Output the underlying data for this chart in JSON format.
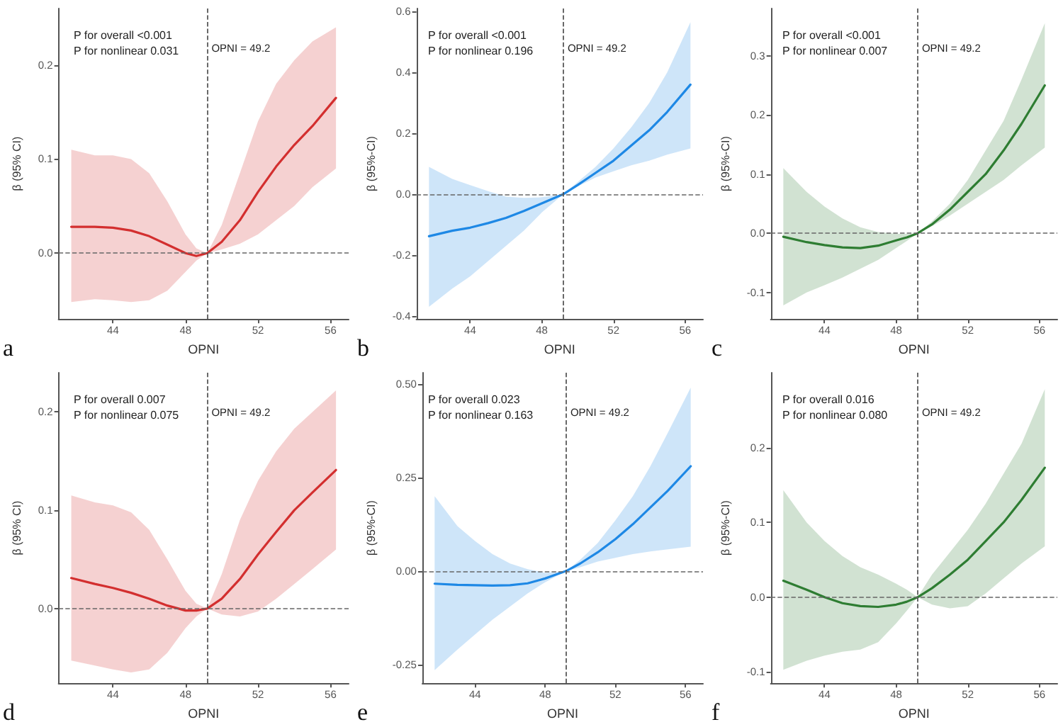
{
  "chart_data": [
    {
      "type": "line",
      "title": "a",
      "xlabel": "OPNI",
      "ylabel": "β (95% CI)",
      "x": [
        41.7,
        43,
        44,
        45,
        46,
        47,
        48,
        48.6,
        49.2,
        50,
        51,
        52,
        53,
        54,
        55,
        56.3
      ],
      "xlim": [
        41,
        57
      ],
      "xticks": [
        44,
        48,
        52,
        56
      ],
      "ylim": [
        -0.07,
        0.26
      ],
      "yticks": [
        {
          "value": 0,
          "label": "0.0"
        },
        {
          "value": 0.1,
          "label": "0.1"
        },
        {
          "value": 0.2,
          "label": "0.2"
        }
      ],
      "grid": false,
      "marker": "none",
      "line_style": "solid",
      "annotations": [
        "P for overall <0.001",
        "P for nonlinear 0.031"
      ],
      "ref_lines": [
        {
          "axis": "x",
          "value": 49.2,
          "label": "OPNI = 49.2",
          "line_style": "dashed"
        },
        {
          "axis": "y",
          "value": 0,
          "line_style": "dashed"
        }
      ],
      "series": [
        {
          "color": "#d32f2f",
          "values": [
            0.028,
            0.028,
            0.027,
            0.024,
            0.018,
            0.009,
            0.0,
            -0.003,
            0,
            0.012,
            0.035,
            0.065,
            0.092,
            0.115,
            0.135,
            0.165
          ],
          "lower": [
            -0.052,
            -0.049,
            -0.05,
            -0.052,
            -0.05,
            -0.04,
            -0.02,
            -0.008,
            0,
            0.004,
            0.01,
            0.02,
            0.035,
            0.05,
            0.07,
            0.09
          ],
          "upper": [
            0.11,
            0.104,
            0.104,
            0.1,
            0.085,
            0.055,
            0.02,
            0.005,
            0,
            0.03,
            0.085,
            0.14,
            0.18,
            0.205,
            0.225,
            0.24
          ]
        }
      ]
    },
    {
      "type": "line",
      "title": "b",
      "xlabel": "OPNI",
      "ylabel": "β (95%-CI)",
      "x": [
        41.7,
        43,
        44,
        45,
        46,
        47,
        48,
        48.6,
        49.2,
        50,
        51,
        52,
        53,
        54,
        55,
        56.3
      ],
      "xlim": [
        41,
        57
      ],
      "xticks": [
        44,
        48,
        52,
        56
      ],
      "ylim": [
        -0.41,
        0.61
      ],
      "yticks": [
        {
          "value": -0.4,
          "label": "-0.4"
        },
        {
          "value": -0.2,
          "label": "-0.2"
        },
        {
          "value": 0,
          "label": "0.0"
        },
        {
          "value": 0.2,
          "label": "0.2"
        },
        {
          "value": 0.4,
          "label": "0.4"
        },
        {
          "value": 0.6,
          "label": "0.6"
        }
      ],
      "grid": false,
      "marker": "none",
      "line_style": "solid",
      "annotations": [
        "P for overall <0.001",
        "P for nonlinear 0.196"
      ],
      "ref_lines": [
        {
          "axis": "x",
          "value": 49.2,
          "label": "OPNI = 49.2",
          "line_style": "dashed"
        },
        {
          "axis": "y",
          "value": 0,
          "line_style": "dashed"
        }
      ],
      "series": [
        {
          "color": "#1e88e5",
          "values": [
            -0.138,
            -0.12,
            -0.11,
            -0.095,
            -0.078,
            -0.055,
            -0.03,
            -0.015,
            0,
            0.03,
            0.07,
            0.11,
            0.16,
            0.21,
            0.27,
            0.36
          ],
          "lower": [
            -0.37,
            -0.31,
            -0.27,
            -0.22,
            -0.17,
            -0.12,
            -0.06,
            -0.03,
            0,
            0.025,
            0.055,
            0.075,
            0.095,
            0.11,
            0.13,
            0.15
          ],
          "upper": [
            0.09,
            0.05,
            0.03,
            0.01,
            -0.008,
            -0.012,
            -0.01,
            -0.005,
            0,
            0.04,
            0.09,
            0.15,
            0.22,
            0.3,
            0.4,
            0.565
          ]
        }
      ]
    },
    {
      "type": "line",
      "title": "c",
      "xlabel": "OPNI",
      "ylabel": "β (95%-CI)",
      "x": [
        41.7,
        43,
        44,
        45,
        46,
        47,
        48,
        48.6,
        49.2,
        50,
        51,
        52,
        53,
        54,
        55,
        56.3
      ],
      "xlim": [
        41,
        57
      ],
      "xticks": [
        44,
        48,
        52,
        56
      ],
      "ylim": [
        -0.145,
        0.38
      ],
      "yticks": [
        {
          "value": -0.1,
          "label": "-0.1"
        },
        {
          "value": 0,
          "label": "0.0"
        },
        {
          "value": 0.1,
          "label": "0.1"
        },
        {
          "value": 0.2,
          "label": "0.2"
        },
        {
          "value": 0.3,
          "label": "0.3"
        }
      ],
      "grid": false,
      "marker": "none",
      "line_style": "solid",
      "annotations": [
        "P for overall <0.001",
        "P for nonlinear 0.007"
      ],
      "ref_lines": [
        {
          "axis": "x",
          "value": 49.2,
          "label": "OPNI = 49.2",
          "line_style": "dashed"
        },
        {
          "axis": "y",
          "value": 0,
          "line_style": "dashed"
        }
      ],
      "series": [
        {
          "color": "#2e7d32",
          "values": [
            -0.006,
            -0.015,
            -0.02,
            -0.024,
            -0.025,
            -0.021,
            -0.012,
            -0.007,
            0,
            0.015,
            0.04,
            0.07,
            0.1,
            0.14,
            0.185,
            0.25
          ],
          "lower": [
            -0.122,
            -0.1,
            -0.088,
            -0.075,
            -0.06,
            -0.045,
            -0.025,
            -0.013,
            0,
            0.012,
            0.03,
            0.05,
            0.07,
            0.09,
            0.115,
            0.145
          ],
          "upper": [
            0.11,
            0.07,
            0.045,
            0.025,
            0.01,
            0.002,
            -0.001,
            -0.001,
            0,
            0.02,
            0.05,
            0.09,
            0.14,
            0.19,
            0.26,
            0.355
          ]
        }
      ]
    },
    {
      "type": "line",
      "title": "d",
      "xlabel": "OPNI",
      "ylabel": "β (95% CI)",
      "x": [
        41.7,
        43,
        44,
        45,
        46,
        47,
        48,
        48.6,
        49.2,
        50,
        51,
        52,
        53,
        54,
        55,
        56.3
      ],
      "xlim": [
        41,
        57
      ],
      "xticks": [
        44,
        48,
        52,
        56
      ],
      "ylim": [
        -0.076,
        0.24
      ],
      "yticks": [
        {
          "value": 0,
          "label": "0.0"
        },
        {
          "value": 0.1,
          "label": "0.1"
        },
        {
          "value": 0.2,
          "label": "0.2"
        }
      ],
      "grid": false,
      "marker": "none",
      "line_style": "solid",
      "annotations": [
        "P for overall 0.007",
        "P for nonlinear 0.075"
      ],
      "ref_lines": [
        {
          "axis": "x",
          "value": 49.2,
          "label": "OPNI = 49.2",
          "line_style": "dashed"
        },
        {
          "axis": "y",
          "value": 0,
          "line_style": "dashed"
        }
      ],
      "series": [
        {
          "color": "#d32f2f",
          "values": [
            0.031,
            0.025,
            0.021,
            0.016,
            0.01,
            0.003,
            -0.002,
            -0.002,
            0,
            0.01,
            0.03,
            0.055,
            0.078,
            0.1,
            0.118,
            0.141
          ],
          "lower": [
            -0.053,
            -0.058,
            -0.062,
            -0.065,
            -0.062,
            -0.045,
            -0.02,
            -0.008,
            0,
            -0.006,
            -0.008,
            -0.003,
            0.01,
            0.025,
            0.04,
            0.06
          ],
          "upper": [
            0.115,
            0.108,
            0.105,
            0.098,
            0.08,
            0.05,
            0.018,
            0.005,
            0,
            0.035,
            0.09,
            0.13,
            0.16,
            0.183,
            0.2,
            0.222
          ]
        }
      ]
    },
    {
      "type": "line",
      "title": "e",
      "xlabel": "OPNI",
      "ylabel": "β (95%-CI)",
      "x": [
        41.7,
        43,
        44,
        45,
        46,
        47,
        48,
        48.6,
        49.2,
        50,
        51,
        52,
        53,
        54,
        55,
        56.3
      ],
      "xlim": [
        41,
        57
      ],
      "xticks": [
        44,
        48,
        52,
        56
      ],
      "ylim": [
        -0.3,
        0.53
      ],
      "yticks": [
        {
          "value": -0.25,
          "label": "-0.25"
        },
        {
          "value": 0,
          "label": "0.00"
        },
        {
          "value": 0.25,
          "label": "0.25"
        },
        {
          "value": 0.5,
          "label": "0.50"
        }
      ],
      "grid": false,
      "marker": "none",
      "line_style": "solid",
      "annotations": [
        "P for overall 0.023",
        "P for nonlinear 0.163"
      ],
      "ref_lines": [
        {
          "axis": "x",
          "value": 49.2,
          "label": "OPNI = 49.2",
          "line_style": "dashed"
        },
        {
          "axis": "y",
          "value": 0,
          "line_style": "dashed"
        }
      ],
      "series": [
        {
          "color": "#1e88e5",
          "values": [
            -0.034,
            -0.037,
            -0.038,
            -0.039,
            -0.038,
            -0.033,
            -0.02,
            -0.01,
            0,
            0.02,
            0.05,
            0.085,
            0.125,
            0.17,
            0.215,
            0.28
          ],
          "lower": [
            -0.265,
            -0.21,
            -0.17,
            -0.13,
            -0.095,
            -0.06,
            -0.03,
            -0.015,
            0,
            0.01,
            0.025,
            0.035,
            0.045,
            0.052,
            0.058,
            0.065
          ],
          "upper": [
            0.2,
            0.12,
            0.08,
            0.045,
            0.02,
            0.005,
            -0.005,
            -0.003,
            0,
            0.03,
            0.075,
            0.135,
            0.2,
            0.28,
            0.37,
            0.49
          ]
        }
      ]
    },
    {
      "type": "line",
      "title": "f",
      "xlabel": "OPNI",
      "ylabel": "β (95%-CI)",
      "x": [
        41.7,
        43,
        44,
        45,
        46,
        47,
        48,
        48.6,
        49.2,
        50,
        51,
        52,
        53,
        54,
        55,
        56.3
      ],
      "xlim": [
        41,
        57
      ],
      "xticks": [
        44,
        48,
        52,
        56
      ],
      "ylim": [
        -0.115,
        0.3
      ],
      "yticks": [
        {
          "value": -0.1,
          "label": "-0.1"
        },
        {
          "value": 0,
          "label": "0.0"
        },
        {
          "value": 0.1,
          "label": "0.1"
        },
        {
          "value": 0.2,
          "label": "0.2"
        }
      ],
      "grid": false,
      "marker": "none",
      "line_style": "solid",
      "annotations": [
        "P for overall 0.016",
        "P for nonlinear 0.080"
      ],
      "ref_lines": [
        {
          "axis": "x",
          "value": 49.2,
          "label": "OPNI = 49.2",
          "line_style": "dashed"
        },
        {
          "axis": "y",
          "value": 0,
          "line_style": "dashed"
        }
      ],
      "series": [
        {
          "color": "#2e7d32",
          "values": [
            0.022,
            0.01,
            0.0,
            -0.008,
            -0.012,
            -0.013,
            -0.01,
            -0.006,
            0,
            0.012,
            0.03,
            0.05,
            0.075,
            0.1,
            0.13,
            0.173
          ],
          "lower": [
            -0.097,
            -0.085,
            -0.078,
            -0.073,
            -0.07,
            -0.06,
            -0.035,
            -0.018,
            0,
            -0.01,
            -0.015,
            -0.012,
            0.005,
            0.025,
            0.045,
            0.068
          ],
          "upper": [
            0.143,
            0.1,
            0.075,
            0.055,
            0.04,
            0.03,
            0.018,
            0.01,
            0,
            0.03,
            0.06,
            0.09,
            0.125,
            0.165,
            0.205,
            0.278
          ]
        }
      ]
    }
  ]
}
